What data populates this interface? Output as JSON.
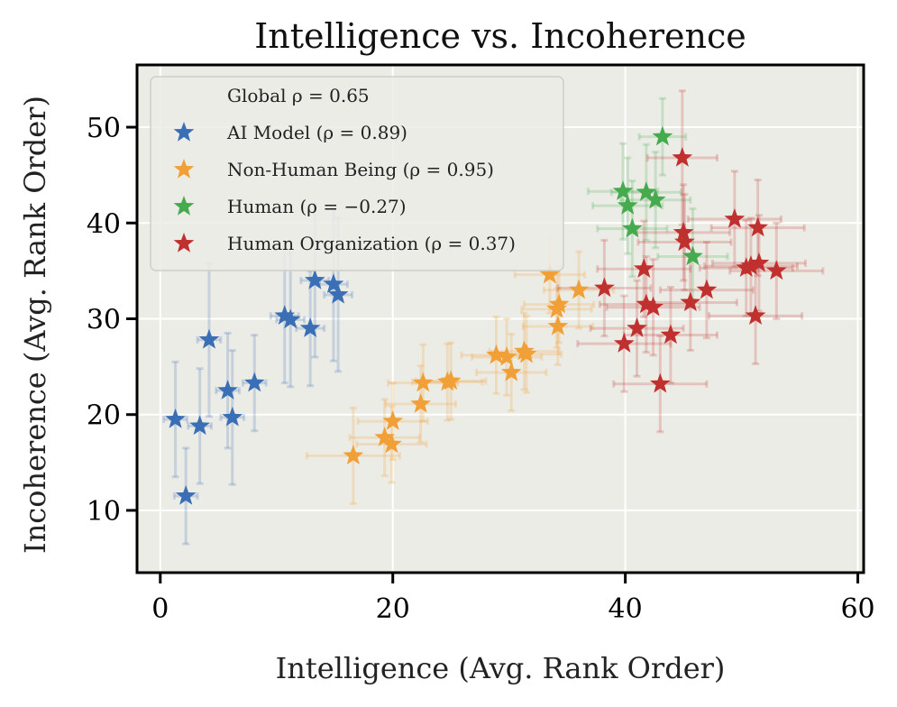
{
  "chart_data": {
    "type": "scatter",
    "title": "Intelligence vs. Incoherence",
    "xlabel": "Intelligence (Avg. Rank Order)",
    "ylabel": "Incoherence (Avg. Rank Order)",
    "xlim": [
      -2,
      60.5
    ],
    "ylim": [
      3.5,
      56.5
    ],
    "xticks": [
      0,
      20,
      40,
      60
    ],
    "yticks": [
      10,
      20,
      30,
      40,
      50
    ],
    "grid": true,
    "legend_position": "top-left",
    "global_label": "Global ρ = 0.65",
    "series": [
      {
        "name": "AI Model (ρ = 0.89)",
        "color": "#3a6fb5",
        "points": [
          {
            "x": 1.3,
            "y": 19.5,
            "xerr": 1.0,
            "yerr": 6
          },
          {
            "x": 2.2,
            "y": 11.5,
            "xerr": 1.0,
            "yerr": 5
          },
          {
            "x": 3.4,
            "y": 18.8,
            "xerr": 1.0,
            "yerr": 6
          },
          {
            "x": 4.2,
            "y": 27.8,
            "xerr": 1.0,
            "yerr": 8
          },
          {
            "x": 5.8,
            "y": 22.5,
            "xerr": 1.0,
            "yerr": 6
          },
          {
            "x": 6.2,
            "y": 19.7,
            "xerr": 1.0,
            "yerr": 7
          },
          {
            "x": 8.1,
            "y": 23.3,
            "xerr": 1.0,
            "yerr": 5
          },
          {
            "x": 10.7,
            "y": 30.3,
            "xerr": 1.2,
            "yerr": 7
          },
          {
            "x": 11.2,
            "y": 29.9,
            "xerr": 1.2,
            "yerr": 7
          },
          {
            "x": 12.9,
            "y": 29.0,
            "xerr": 1.2,
            "yerr": 6
          },
          {
            "x": 13.3,
            "y": 34.0,
            "xerr": 1.2,
            "yerr": 8
          },
          {
            "x": 14.9,
            "y": 33.6,
            "xerr": 1.2,
            "yerr": 8
          },
          {
            "x": 15.3,
            "y": 32.5,
            "xerr": 1.2,
            "yerr": 8
          }
        ]
      },
      {
        "name": "Non-Human Being (ρ = 0.95)",
        "color": "#f0a037",
        "points": [
          {
            "x": 16.6,
            "y": 15.7,
            "xerr": 4,
            "yerr": 5
          },
          {
            "x": 19.3,
            "y": 17.6,
            "xerr": 3,
            "yerr": 4
          },
          {
            "x": 19.9,
            "y": 16.9,
            "xerr": 3,
            "yerr": 4
          },
          {
            "x": 20.0,
            "y": 19.3,
            "xerr": 3,
            "yerr": 4
          },
          {
            "x": 22.4,
            "y": 21.1,
            "xerr": 3,
            "yerr": 4
          },
          {
            "x": 22.6,
            "y": 23.3,
            "xerr": 3,
            "yerr": 4
          },
          {
            "x": 24.7,
            "y": 23.4,
            "xerr": 3,
            "yerr": 4
          },
          {
            "x": 25.0,
            "y": 23.5,
            "xerr": 3,
            "yerr": 4
          },
          {
            "x": 28.9,
            "y": 26.2,
            "xerr": 3,
            "yerr": 4
          },
          {
            "x": 29.8,
            "y": 26.0,
            "xerr": 3,
            "yerr": 4
          },
          {
            "x": 30.2,
            "y": 24.4,
            "xerr": 3,
            "yerr": 4
          },
          {
            "x": 31.3,
            "y": 26.6,
            "xerr": 3,
            "yerr": 4
          },
          {
            "x": 31.5,
            "y": 26.3,
            "xerr": 3,
            "yerr": 4
          },
          {
            "x": 33.5,
            "y": 34.6,
            "xerr": 3,
            "yerr": 4
          },
          {
            "x": 34.1,
            "y": 31.0,
            "xerr": 3,
            "yerr": 4
          },
          {
            "x": 34.2,
            "y": 29.2,
            "xerr": 3,
            "yerr": 4
          },
          {
            "x": 34.3,
            "y": 31.5,
            "xerr": 3,
            "yerr": 4
          },
          {
            "x": 36.0,
            "y": 33.0,
            "xerr": 3,
            "yerr": 4
          }
        ]
      },
      {
        "name": "Human (ρ = −0.27)",
        "color": "#46aa4e",
        "points": [
          {
            "x": 39.8,
            "y": 43.3,
            "xerr": 3,
            "yerr": 5
          },
          {
            "x": 40.2,
            "y": 41.8,
            "xerr": 3,
            "yerr": 5
          },
          {
            "x": 40.6,
            "y": 39.4,
            "xerr": 3,
            "yerr": 5
          },
          {
            "x": 41.8,
            "y": 43.2,
            "xerr": 3,
            "yerr": 5
          },
          {
            "x": 42.6,
            "y": 42.4,
            "xerr": 3,
            "yerr": 5
          },
          {
            "x": 43.2,
            "y": 49.0,
            "xerr": 2,
            "yerr": 4
          },
          {
            "x": 45.8,
            "y": 36.5,
            "xerr": 3,
            "yerr": 5
          }
        ]
      },
      {
        "name": "Human Organization (ρ = 0.37)",
        "color": "#c0302e",
        "points": [
          {
            "x": 38.2,
            "y": 33.2,
            "xerr": 4,
            "yerr": 5
          },
          {
            "x": 39.9,
            "y": 27.4,
            "xerr": 4,
            "yerr": 5
          },
          {
            "x": 41.0,
            "y": 29.0,
            "xerr": 4,
            "yerr": 5
          },
          {
            "x": 41.6,
            "y": 35.2,
            "xerr": 4,
            "yerr": 5
          },
          {
            "x": 41.8,
            "y": 31.5,
            "xerr": 4,
            "yerr": 5
          },
          {
            "x": 42.4,
            "y": 31.2,
            "xerr": 4,
            "yerr": 5
          },
          {
            "x": 43.0,
            "y": 23.2,
            "xerr": 4,
            "yerr": 5
          },
          {
            "x": 43.9,
            "y": 28.3,
            "xerr": 4,
            "yerr": 5
          },
          {
            "x": 44.9,
            "y": 46.8,
            "xerr": 3,
            "yerr": 7
          },
          {
            "x": 45.0,
            "y": 39.0,
            "xerr": 4,
            "yerr": 5
          },
          {
            "x": 45.1,
            "y": 38.0,
            "xerr": 4,
            "yerr": 5
          },
          {
            "x": 45.6,
            "y": 31.7,
            "xerr": 4,
            "yerr": 5
          },
          {
            "x": 47.0,
            "y": 33.0,
            "xerr": 4,
            "yerr": 5
          },
          {
            "x": 49.4,
            "y": 40.4,
            "xerr": 4,
            "yerr": 5
          },
          {
            "x": 50.4,
            "y": 35.3,
            "xerr": 4,
            "yerr": 5
          },
          {
            "x": 50.8,
            "y": 35.5,
            "xerr": 4,
            "yerr": 5
          },
          {
            "x": 51.2,
            "y": 30.3,
            "xerr": 4,
            "yerr": 5
          },
          {
            "x": 51.4,
            "y": 39.5,
            "xerr": 4,
            "yerr": 5
          },
          {
            "x": 51.5,
            "y": 35.8,
            "xerr": 4,
            "yerr": 5
          },
          {
            "x": 53.0,
            "y": 35.0,
            "xerr": 4,
            "yerr": 5
          }
        ]
      }
    ]
  }
}
